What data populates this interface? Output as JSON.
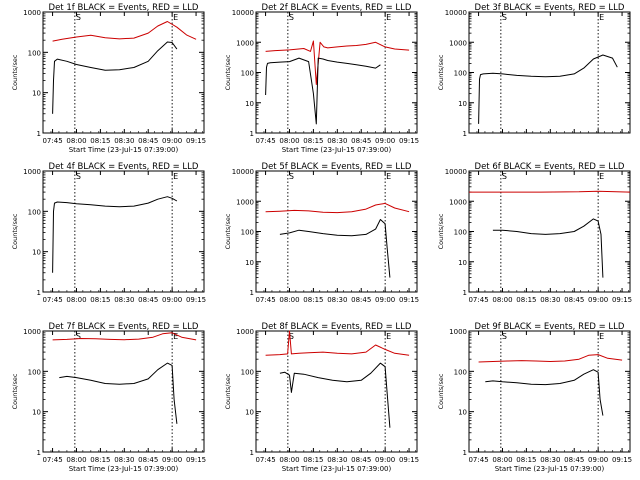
{
  "chart_data": [
    {
      "type": "line",
      "title": "Det 1f BLACK = Events, RED = LLD",
      "xlabel": "Start Time (23-Jul-15 07:39:00)",
      "ylabel": "Counts/sec",
      "yscale": "log",
      "ylim": [
        1,
        1000
      ],
      "xlim": [
        7.65,
        9.333
      ],
      "x_ticks": [
        "07:45",
        "08:00",
        "08:15",
        "08:30",
        "08:45",
        "09:00",
        "09:15"
      ],
      "y_ticks": [
        "1",
        "10",
        "100",
        "1000"
      ],
      "vlines": [
        7.983,
        9.0
      ],
      "vline_labels": [
        "S",
        "E"
      ],
      "series": [
        {
          "color": "#cc0000",
          "x": [
            7.75,
            7.85,
            8.0,
            8.15,
            8.3,
            8.45,
            8.6,
            8.75,
            8.85,
            8.95,
            9.05,
            9.15,
            9.25
          ],
          "y": [
            190,
            210,
            240,
            265,
            230,
            215,
            225,
            300,
            450,
            580,
            420,
            270,
            210
          ]
        },
        {
          "color": "#000000",
          "x": [
            7.75,
            7.76,
            7.77,
            7.8,
            7.9,
            8.0,
            8.15,
            8.3,
            8.45,
            8.6,
            8.75,
            8.85,
            8.95,
            9.0,
            9.05
          ],
          "y": [
            3,
            20,
            60,
            68,
            60,
            50,
            42,
            36,
            37,
            42,
            60,
            110,
            180,
            175,
            120
          ]
        }
      ]
    },
    {
      "type": "line",
      "title": "Det 2f BLACK = Events, RED = LLD",
      "xlabel": "Start Time (23-Jul-15 07:39:00)",
      "ylabel": "Counts/sec",
      "yscale": "log",
      "ylim": [
        1,
        10000
      ],
      "xlim": [
        7.65,
        9.333
      ],
      "x_ticks": [
        "07:45",
        "08:00",
        "08:15",
        "08:30",
        "08:45",
        "09:00",
        "09:15"
      ],
      "y_ticks": [
        "1",
        "10",
        "100",
        "1000",
        "10000"
      ],
      "vlines": [
        7.983,
        9.0
      ],
      "vline_labels": [
        "S",
        "E"
      ],
      "series": [
        {
          "color": "#cc0000",
          "x": [
            7.75,
            7.85,
            8.0,
            8.15,
            8.22,
            8.25,
            8.28,
            8.32,
            8.36,
            8.4,
            8.5,
            8.6,
            8.7,
            8.8,
            8.9,
            9.0,
            9.1,
            9.25
          ],
          "y": [
            500,
            530,
            560,
            620,
            500,
            1100,
            40,
            1000,
            700,
            650,
            700,
            750,
            780,
            850,
            1000,
            700,
            600,
            550
          ]
        },
        {
          "color": "#000000",
          "x": [
            7.75,
            7.76,
            7.77,
            7.8,
            7.9,
            8.0,
            8.1,
            8.2,
            8.25,
            8.28,
            8.3,
            8.35,
            8.4,
            8.5,
            8.6,
            8.7,
            8.8,
            8.9,
            8.95
          ],
          "y": [
            18,
            150,
            200,
            210,
            220,
            230,
            300,
            230,
            20,
            2,
            300,
            280,
            250,
            220,
            200,
            180,
            160,
            140,
            180
          ]
        }
      ]
    },
    {
      "type": "line",
      "title": "Det 3f BLACK = Events, RED = LLD",
      "xlabel": "",
      "ylabel": "Counts/sec",
      "yscale": "log",
      "ylim": [
        1,
        10000
      ],
      "xlim": [
        7.65,
        9.333
      ],
      "x_ticks": [],
      "y_ticks": [
        "1",
        "10",
        "100",
        "1000",
        "10000"
      ],
      "vlines": [
        7.983,
        9.0
      ],
      "vline_labels": [
        "S",
        "E"
      ],
      "series": [
        {
          "color": "#000000",
          "x": [
            7.75,
            7.76,
            7.77,
            7.8,
            7.9,
            8.0,
            8.15,
            8.3,
            8.45,
            8.6,
            8.75,
            8.85,
            8.95,
            9.05,
            9.15,
            9.2
          ],
          "y": [
            2,
            60,
            85,
            90,
            95,
            90,
            80,
            75,
            72,
            75,
            90,
            140,
            280,
            380,
            300,
            150
          ]
        }
      ]
    },
    {
      "type": "line",
      "title": "Det 4f BLACK = Events, RED = LLD",
      "xlabel": "",
      "ylabel": "Counts/sec",
      "yscale": "log",
      "ylim": [
        1,
        1000
      ],
      "xlim": [
        7.65,
        9.333
      ],
      "x_ticks": [
        "07:45",
        "08:00",
        "08:15",
        "08:30",
        "08:45",
        "09:00",
        "09:15"
      ],
      "y_ticks": [
        "1",
        "10",
        "100",
        "1000"
      ],
      "vlines": [
        7.983,
        9.0
      ],
      "vline_labels": [
        "S",
        "E"
      ],
      "series": [
        {
          "color": "#000000",
          "x": [
            7.75,
            7.76,
            7.77,
            7.8,
            7.9,
            8.0,
            8.15,
            8.3,
            8.45,
            8.6,
            8.75,
            8.85,
            8.95,
            9.0,
            9.05
          ],
          "y": [
            3,
            100,
            160,
            170,
            165,
            155,
            145,
            135,
            130,
            135,
            160,
            200,
            230,
            210,
            180
          ]
        }
      ]
    },
    {
      "type": "line",
      "title": "Det 5f BLACK = Events, RED = LLD",
      "xlabel": "",
      "ylabel": "Counts/sec",
      "yscale": "log",
      "ylim": [
        1,
        10000
      ],
      "xlim": [
        7.65,
        9.333
      ],
      "x_ticks": [
        "07:45",
        "08:00",
        "08:15",
        "08:30",
        "08:45",
        "09:00",
        "09:15"
      ],
      "y_ticks": [
        "1",
        "10",
        "100",
        "1000",
        "10000"
      ],
      "vlines": [
        7.983,
        9.0
      ],
      "vline_labels": [
        "S",
        "E"
      ],
      "series": [
        {
          "color": "#cc0000",
          "x": [
            7.75,
            7.9,
            8.05,
            8.2,
            8.35,
            8.5,
            8.65,
            8.8,
            8.9,
            9.0,
            9.1,
            9.25
          ],
          "y": [
            450,
            470,
            500,
            480,
            430,
            420,
            450,
            550,
            750,
            850,
            600,
            450
          ]
        },
        {
          "color": "#000000",
          "x": [
            7.9,
            8.0,
            8.1,
            8.2,
            8.35,
            8.5,
            8.65,
            8.8,
            8.9,
            8.95,
            9.0,
            9.02,
            9.05
          ],
          "y": [
            80,
            90,
            110,
            100,
            85,
            75,
            72,
            80,
            120,
            250,
            180,
            30,
            3
          ]
        }
      ]
    },
    {
      "type": "line",
      "title": "Det 6f BLACK = Events, RED = LLD",
      "xlabel": "",
      "ylabel": "Counts/sec",
      "yscale": "log",
      "ylim": [
        1,
        10000
      ],
      "xlim": [
        7.65,
        9.333
      ],
      "x_ticks": [
        "07:45",
        "08:00",
        "08:15",
        "08:30",
        "08:45",
        "09:00",
        "09:15"
      ],
      "y_ticks": [
        "1",
        "10",
        "100",
        "1000",
        "10000"
      ],
      "vlines": [
        7.983,
        9.0
      ],
      "vline_labels": [
        "S",
        "E"
      ],
      "series": [
        {
          "color": "#cc0000",
          "x": [
            7.65,
            8.0,
            8.4,
            8.8,
            9.0,
            9.333
          ],
          "y": [
            2000,
            2000,
            2000,
            2050,
            2150,
            2000
          ]
        },
        {
          "color": "#000000",
          "x": [
            7.9,
            8.0,
            8.15,
            8.3,
            8.45,
            8.6,
            8.75,
            8.85,
            8.95,
            9.0,
            9.03,
            9.05
          ],
          "y": [
            110,
            110,
            100,
            85,
            80,
            85,
            100,
            150,
            260,
            220,
            80,
            3
          ]
        }
      ]
    },
    {
      "type": "line",
      "title": "Det 7f BLACK = Events, RED = LLD",
      "xlabel": "Start Time (23-Jul-15 07:39:00)",
      "ylabel": "Counts/sec",
      "yscale": "log",
      "ylim": [
        1,
        1000
      ],
      "xlim": [
        7.65,
        9.333
      ],
      "x_ticks": [
        "07:45",
        "08:00",
        "08:15",
        "08:30",
        "08:45",
        "09:00",
        "09:15"
      ],
      "y_ticks": [
        "1",
        "10",
        "100",
        "1000"
      ],
      "vlines": [
        7.983,
        9.0
      ],
      "vline_labels": [
        "S",
        "E"
      ],
      "series": [
        {
          "color": "#cc0000",
          "x": [
            7.75,
            7.9,
            8.05,
            8.2,
            8.35,
            8.5,
            8.65,
            8.8,
            8.9,
            9.0,
            9.1,
            9.25
          ],
          "y": [
            600,
            620,
            650,
            640,
            620,
            610,
            630,
            700,
            850,
            900,
            700,
            600
          ]
        },
        {
          "color": "#000000",
          "x": [
            7.82,
            7.9,
            8.0,
            8.15,
            8.3,
            8.45,
            8.6,
            8.75,
            8.85,
            8.95,
            9.0,
            9.02,
            9.05
          ],
          "y": [
            70,
            75,
            70,
            60,
            50,
            48,
            50,
            65,
            110,
            160,
            140,
            20,
            5
          ]
        }
      ]
    },
    {
      "type": "line",
      "title": "Det 8f BLACK = Events, RED = LLD",
      "xlabel": "Start Time (23-Jul-15 07:39:00)",
      "ylabel": "Counts/sec",
      "yscale": "log",
      "ylim": [
        1,
        1000
      ],
      "xlim": [
        7.65,
        9.333
      ],
      "x_ticks": [
        "07:45",
        "08:00",
        "08:15",
        "08:30",
        "08:45",
        "09:00",
        "09:15"
      ],
      "y_ticks": [
        "1",
        "10",
        "100",
        "1000"
      ],
      "vlines": [
        7.983,
        9.0
      ],
      "vline_labels": [
        "S",
        "E"
      ],
      "series": [
        {
          "color": "#cc0000",
          "x": [
            7.75,
            7.9,
            7.98,
            8.0,
            8.02,
            8.1,
            8.2,
            8.35,
            8.5,
            8.65,
            8.8,
            8.9,
            9.0,
            9.1,
            9.25
          ],
          "y": [
            250,
            260,
            270,
            1000,
            270,
            280,
            290,
            300,
            280,
            270,
            300,
            450,
            350,
            280,
            250
          ]
        },
        {
          "color": "#000000",
          "x": [
            7.9,
            7.95,
            8.0,
            8.02,
            8.05,
            8.15,
            8.3,
            8.45,
            8.6,
            8.75,
            8.85,
            8.95,
            9.0,
            9.02,
            9.05
          ],
          "y": [
            90,
            95,
            80,
            30,
            90,
            85,
            70,
            60,
            55,
            60,
            90,
            160,
            130,
            30,
            4
          ]
        }
      ]
    },
    {
      "type": "line",
      "title": "Det 9f BLACK = Events, RED = LLD",
      "xlabel": "Start Time (23-Jul-15 07:39:00)",
      "ylabel": "Counts/sec",
      "yscale": "log",
      "ylim": [
        1,
        1000
      ],
      "xlim": [
        7.65,
        9.333
      ],
      "x_ticks": [
        "07:45",
        "08:00",
        "08:15",
        "08:30",
        "08:45",
        "09:00",
        "09:15"
      ],
      "y_ticks": [
        "1",
        "10",
        "100",
        "1000"
      ],
      "vlines": [
        7.983,
        9.0
      ],
      "vline_labels": [
        "S",
        "E"
      ],
      "series": [
        {
          "color": "#cc0000",
          "x": [
            7.75,
            7.9,
            8.05,
            8.2,
            8.35,
            8.5,
            8.65,
            8.8,
            8.9,
            9.0,
            9.1,
            9.25
          ],
          "y": [
            170,
            175,
            180,
            185,
            180,
            175,
            180,
            200,
            250,
            260,
            210,
            190
          ]
        },
        {
          "color": "#000000",
          "x": [
            7.82,
            7.9,
            8.0,
            8.15,
            8.3,
            8.45,
            8.6,
            8.75,
            8.85,
            8.95,
            9.0,
            9.02,
            9.05
          ],
          "y": [
            55,
            58,
            55,
            52,
            48,
            47,
            50,
            60,
            85,
            110,
            95,
            20,
            8
          ]
        }
      ]
    }
  ]
}
